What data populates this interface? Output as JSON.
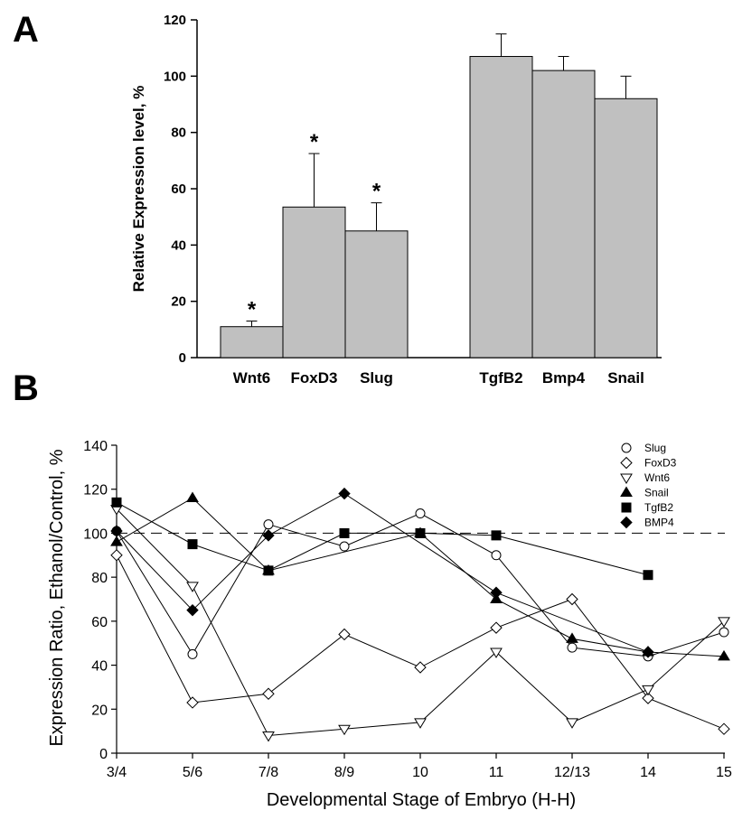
{
  "panels": {
    "a": "A",
    "b": "B"
  },
  "chart_data": [
    {
      "type": "bar",
      "panel": "A",
      "ylabel": "Relative Expression level, %",
      "xlabel": "",
      "ylim": [
        0,
        120
      ],
      "yticks": [
        0,
        20,
        40,
        60,
        80,
        100,
        120
      ],
      "categories": [
        "Wnt6",
        "FoxD3",
        "Slug",
        "TgfB2",
        "Bmp4",
        "Snail"
      ],
      "values": [
        11,
        53.5,
        45,
        107,
        102,
        92
      ],
      "errors": [
        2,
        19,
        10,
        8,
        5,
        8
      ],
      "significance": [
        "*",
        "*",
        "*",
        "",
        "",
        ""
      ],
      "bar_color": "#c0c0c0",
      "grid": false
    },
    {
      "type": "line",
      "panel": "B",
      "xlabel": "Developmental Stage of Embryo (H-H)",
      "ylabel": "Expression Ratio, Ethanol/Control, %",
      "ylim": [
        0,
        140
      ],
      "yticks": [
        0,
        20,
        40,
        60,
        80,
        100,
        120,
        140
      ],
      "categories": [
        "3/4",
        "5/6",
        "7/8",
        "8/9",
        "10",
        "11",
        "12/13",
        "14",
        "15"
      ],
      "reference_line": 100,
      "legend_position": "top-right",
      "grid": false,
      "series": [
        {
          "name": "Slug",
          "marker": "circle-open",
          "values": [
            101,
            45,
            104,
            94,
            109,
            90,
            48,
            44,
            55
          ]
        },
        {
          "name": "FoxD3",
          "marker": "diamond-open",
          "values": [
            90,
            23,
            27,
            54,
            39,
            57,
            70,
            25,
            11
          ]
        },
        {
          "name": "Wnt6",
          "marker": "triangle-down-open",
          "values": [
            111,
            76,
            8,
            11,
            14,
            46,
            14,
            29,
            60
          ]
        },
        {
          "name": "Snail",
          "marker": "triangle-up-filled",
          "values": [
            96,
            116,
            83,
            null,
            100,
            70,
            52,
            46,
            44
          ]
        },
        {
          "name": "TgfB2",
          "marker": "square-filled",
          "values": [
            114,
            95,
            83,
            100,
            100,
            99,
            null,
            81,
            null
          ]
        },
        {
          "name": "BMP4",
          "marker": "diamond-filled",
          "values": [
            101,
            65,
            99,
            118,
            null,
            73,
            null,
            46,
            null
          ]
        }
      ]
    }
  ]
}
